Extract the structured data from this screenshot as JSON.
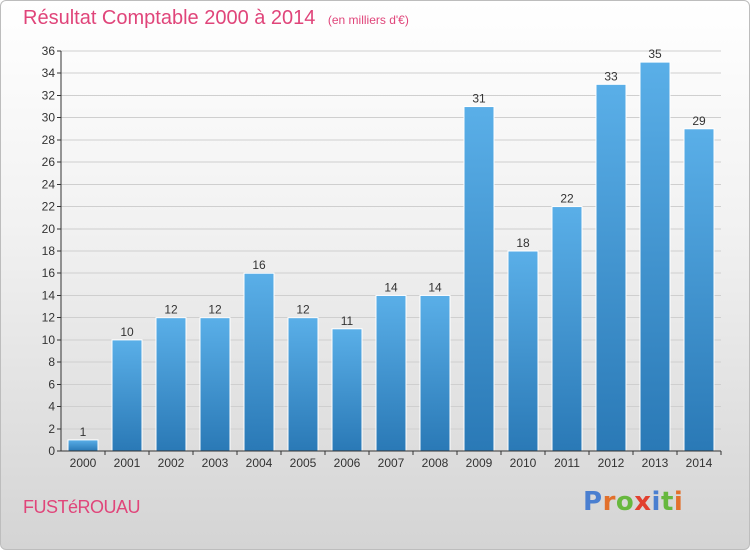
{
  "title": "Résultat Comptable 2000 à 2014",
  "subtitle": "(en milliers d'€)",
  "commune": "FUSTéROUAU",
  "brand": {
    "text": "Proxiti",
    "letter_colors": [
      "#4a7fd0",
      "#e2702b",
      "#67b83e",
      "#e2402f",
      "#4a7fd0",
      "#67b83e",
      "#e2702b"
    ]
  },
  "colors": {
    "title": "#e0457a",
    "bar_top": "#5aafe8",
    "bar_bottom": "#2a79b6",
    "grid": "#cfcfcf",
    "axis": "#333333"
  },
  "chart_data": {
    "type": "bar",
    "categories": [
      "2000",
      "2001",
      "2002",
      "2003",
      "2004",
      "2005",
      "2006",
      "2007",
      "2008",
      "2009",
      "2010",
      "2011",
      "2012",
      "2013",
      "2014"
    ],
    "values": [
      1,
      10,
      12,
      12,
      16,
      12,
      11,
      14,
      14,
      31,
      18,
      22,
      33,
      35,
      29
    ],
    "data_labels": [
      "1",
      "10",
      "12",
      "12",
      "16",
      "12",
      "11",
      "14",
      "14",
      "31",
      "18",
      "22",
      "33",
      "35",
      "29"
    ],
    "yticks": [
      0,
      2,
      4,
      6,
      8,
      10,
      12,
      14,
      16,
      18,
      20,
      22,
      24,
      26,
      28,
      30,
      32,
      34,
      36
    ],
    "ylim": [
      0,
      36
    ],
    "grid": true,
    "title": "Résultat Comptable 2000 à 2014",
    "xlabel": "",
    "ylabel": ""
  }
}
